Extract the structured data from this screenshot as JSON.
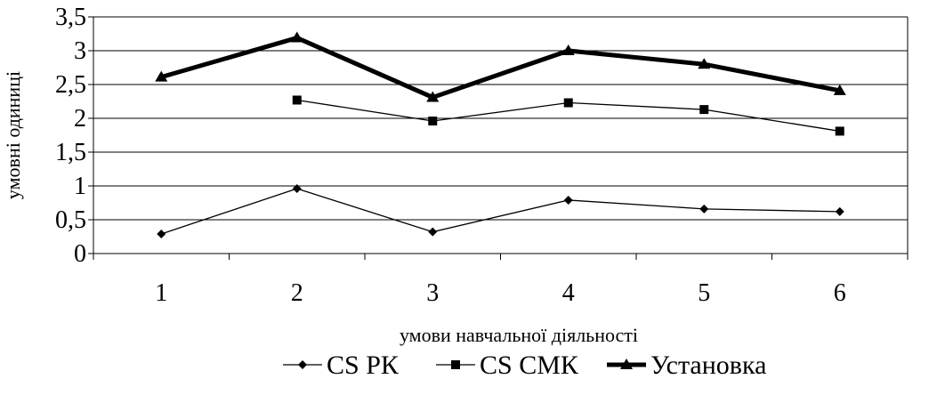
{
  "chart_data": {
    "type": "line",
    "title": "",
    "xlabel": "умови навчальної діяльності",
    "ylabel": "умовні одиниці",
    "categories": [
      "1",
      "2",
      "3",
      "4",
      "5",
      "6"
    ],
    "ylim": [
      0,
      3.5
    ],
    "yticks": [
      "0",
      "0,5",
      "1",
      "1,5",
      "2",
      "2,5",
      "3",
      "3,5"
    ],
    "grid": "horizontal",
    "legend_position": "bottom",
    "series": [
      {
        "name": "CS РК",
        "marker": "diamond",
        "line_weight": "thin",
        "color": "#000000",
        "values": [
          0.29,
          0.96,
          0.32,
          0.79,
          0.66,
          0.62
        ]
      },
      {
        "name": "CS СМК",
        "marker": "square",
        "line_weight": "thin",
        "color": "#000000",
        "values": [
          null,
          2.27,
          1.96,
          2.23,
          2.13,
          1.81
        ]
      },
      {
        "name": "Установка",
        "marker": "triangle",
        "line_weight": "thick",
        "color": "#000000",
        "values": [
          2.61,
          3.19,
          2.31,
          3.0,
          2.8,
          2.41
        ]
      }
    ]
  }
}
